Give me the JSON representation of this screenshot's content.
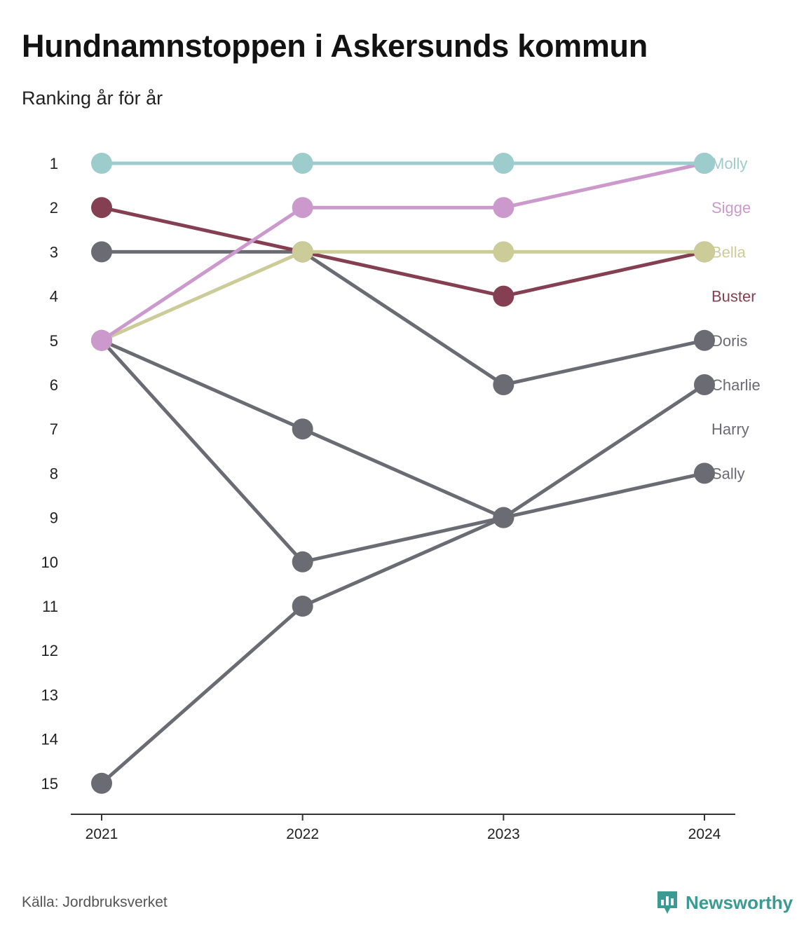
{
  "title": "Hundnamnstoppen i Askersunds kommun",
  "subtitle": "Ranking år för år",
  "source": "Källa: Jordbruksverket",
  "brand": "Newsworthy",
  "brand_icon": "newsworthy-logo-icon",
  "chart_data": {
    "type": "line",
    "x": [
      "2021",
      "2022",
      "2023",
      "2024"
    ],
    "y_ticks": [
      "1",
      "2",
      "3",
      "4",
      "5",
      "6",
      "7",
      "8",
      "9",
      "10",
      "11",
      "12",
      "13",
      "14",
      "15"
    ],
    "ylim": [
      1,
      15
    ],
    "y_inverted": true,
    "grid": false,
    "legend": "end-labels-right",
    "series": [
      {
        "name": "Molly",
        "color": "#9ccccc",
        "values": [
          1,
          1,
          1,
          1
        ]
      },
      {
        "name": "Sigge",
        "color": "#cc99cc",
        "values": [
          5,
          2,
          2,
          1
        ]
      },
      {
        "name": "Bella",
        "color": "#cccc99",
        "values": [
          5,
          3,
          3,
          3
        ]
      },
      {
        "name": "Buster",
        "color": "#853f53",
        "values": [
          2,
          3,
          4,
          3
        ]
      },
      {
        "name": "Doris",
        "color": "#6b6b73",
        "values": [
          3,
          3,
          6,
          5
        ]
      },
      {
        "name": "Charlie",
        "color": "#6b6b73",
        "values": [
          15,
          11,
          9,
          6
        ]
      },
      {
        "name": "Harry",
        "color": "#6b6b73",
        "values": [
          5,
          7,
          9,
          null
        ]
      },
      {
        "name": "Sally",
        "color": "#6b6b73",
        "values": [
          5,
          10,
          9,
          8
        ]
      }
    ]
  }
}
